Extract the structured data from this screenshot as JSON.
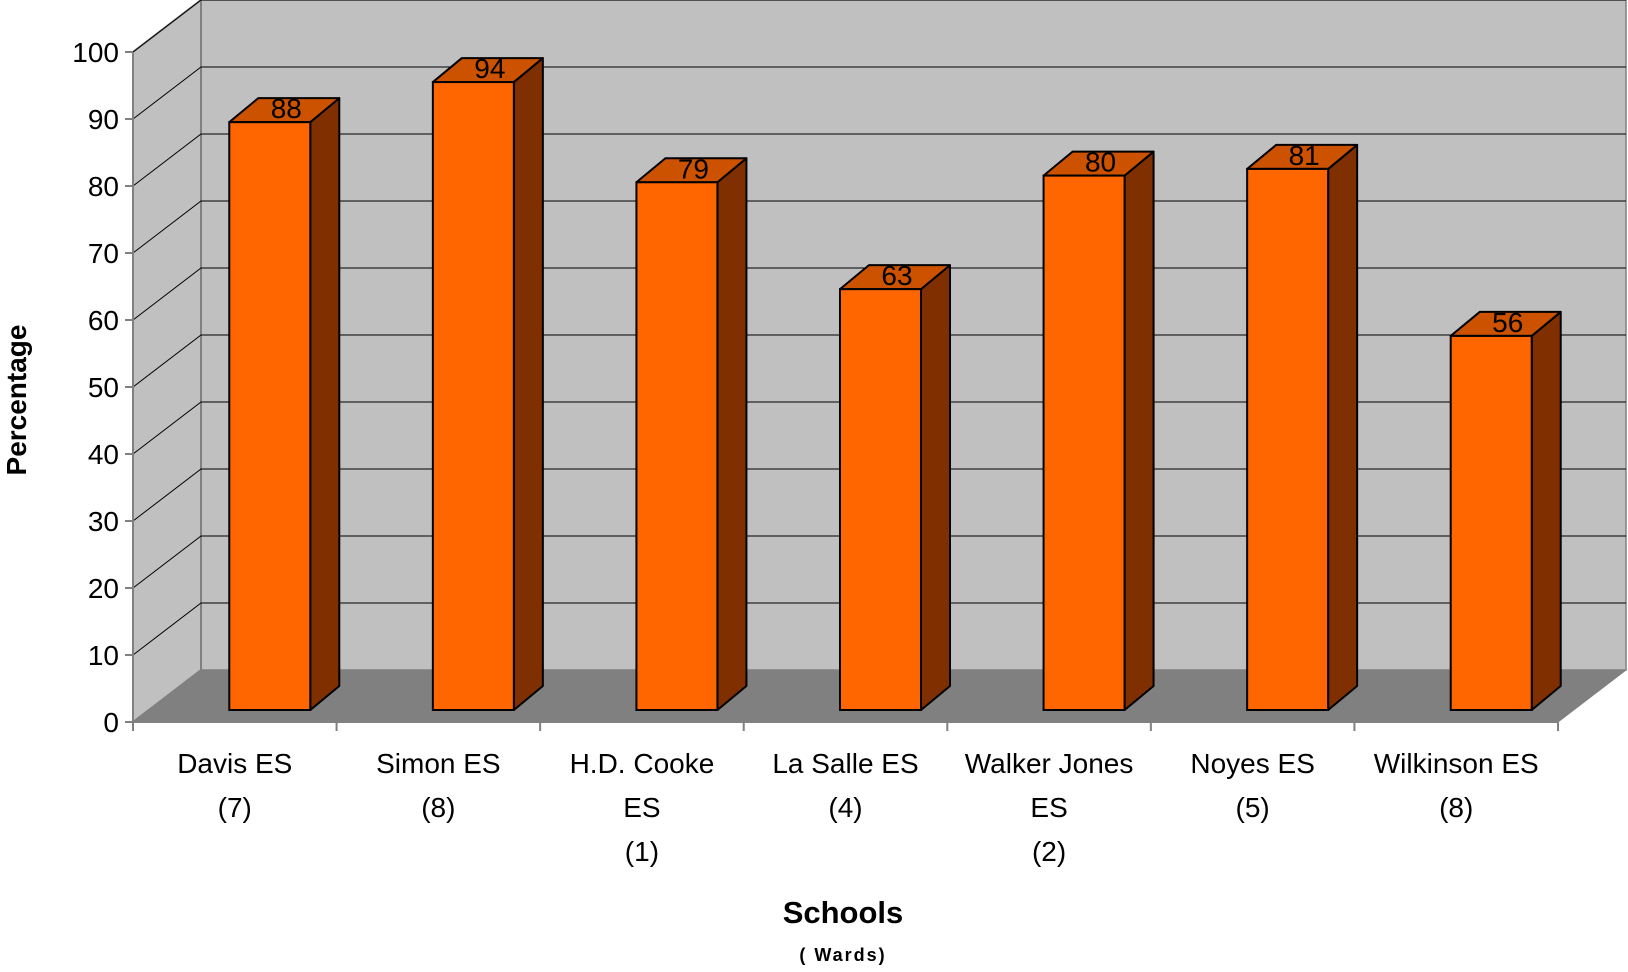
{
  "chart_data": {
    "type": "bar",
    "title": "",
    "xlabel": "Schools",
    "xlabel_sub": "( Wards)",
    "ylabel": "Percentage",
    "ylim": [
      0,
      100
    ],
    "yticks": [
      "0",
      "10",
      "20",
      "30",
      "40",
      "50",
      "60",
      "70",
      "80",
      "90",
      "100"
    ],
    "grid": true,
    "style": "3d",
    "categories": [
      [
        "Davis ES",
        "(7)"
      ],
      [
        "Simon ES",
        "(8)"
      ],
      [
        "H.D. Cooke",
        "ES",
        "(1)"
      ],
      [
        "La Salle ES",
        "(4)"
      ],
      [
        "Walker Jones",
        "ES",
        "(2)"
      ],
      [
        "Noyes ES",
        "(5)"
      ],
      [
        "Wilkinson ES",
        "(8)"
      ]
    ],
    "values": [
      88,
      94,
      79,
      63,
      80,
      81,
      56
    ],
    "data_labels": [
      "88",
      "94",
      "79",
      "63",
      "80",
      "81",
      "56"
    ],
    "colors": {
      "bar_front": "#FF6600",
      "bar_side": "#7F2F00",
      "bar_top": "#CC5200",
      "back_wall": "#C0C0C0",
      "side_wall": "#C0C0C0",
      "floor": "#808080",
      "gridline": "#000000"
    }
  }
}
